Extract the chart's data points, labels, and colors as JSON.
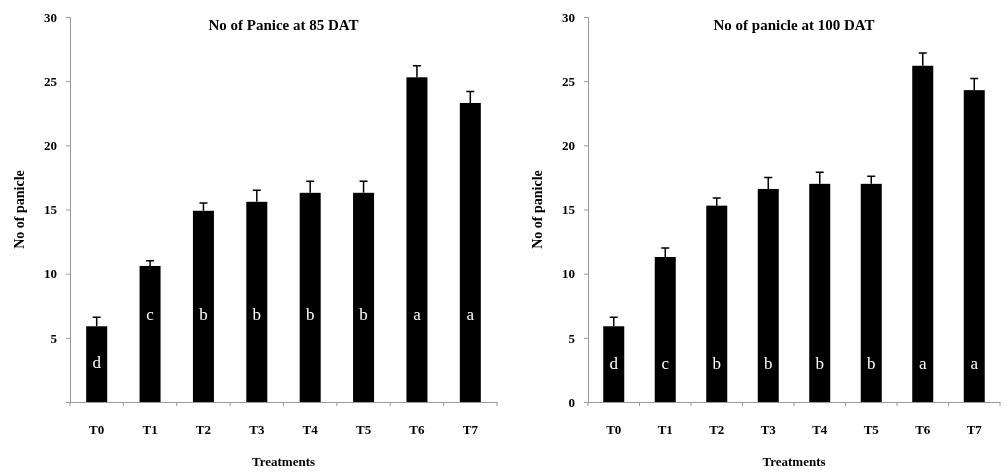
{
  "chart_data": [
    {
      "type": "bar",
      "title": "No of Panice at 85 DAT",
      "xlabel": "Treatments",
      "ylabel": "No of panicle",
      "categories": [
        "T0",
        "T1",
        "T2",
        "T3",
        "T4",
        "T5",
        "T6",
        "T7"
      ],
      "values": [
        5.9,
        10.6,
        14.9,
        15.6,
        16.3,
        16.3,
        25.3,
        23.3
      ],
      "errors": [
        0.7,
        0.4,
        0.6,
        0.9,
        0.9,
        0.9,
        0.9,
        0.9
      ],
      "color": "#000000",
      "ylim": [
        0,
        30
      ],
      "yticks": [
        {
          "value": 0,
          "label": null
        },
        5,
        10,
        15,
        20,
        25,
        30
      ],
      "annotations": [
        "d",
        "c",
        "b",
        "b",
        "b",
        "b",
        "a",
        "a"
      ]
    },
    {
      "type": "bar",
      "title": "No of panicle at 100 DAT",
      "xlabel": "Treatments",
      "ylabel": "No of panicle",
      "categories": [
        "T0",
        "T1",
        "T2",
        "T3",
        "T4",
        "T5",
        "T6",
        "T7"
      ],
      "values": [
        5.9,
        11.3,
        15.3,
        16.6,
        17.0,
        17.0,
        26.2,
        24.3
      ],
      "errors": [
        0.7,
        0.7,
        0.6,
        0.9,
        0.9,
        0.6,
        1.0,
        0.9
      ],
      "color": "#000000",
      "ylim": [
        0,
        30
      ],
      "yticks": [
        0,
        5,
        10,
        15,
        20,
        25,
        30
      ],
      "annotations": [
        "d",
        "c",
        "b",
        "b",
        "b",
        "b",
        "a",
        "a"
      ]
    }
  ]
}
